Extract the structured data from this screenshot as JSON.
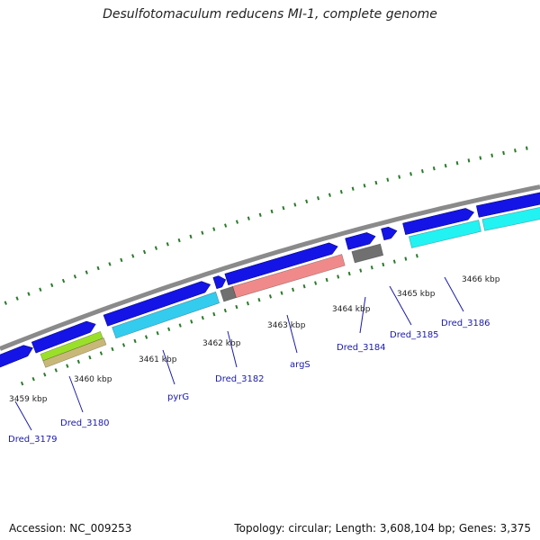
{
  "title": "Desulfotomaculum reducens MI-1, complete genome",
  "footer": {
    "accession": "Accession: NC_009253",
    "topology": "Topology: circular; Length: 3,608,104 bp; Genes: 3,375"
  },
  "colors": {
    "backbone": "#8a8a8a",
    "tick": "#2a7a2a",
    "gene_outer": "#1414e6",
    "cds_cyan_light": "#33ccee",
    "cds_cyan_bright": "#22f2f2",
    "cds_salmon": "#f08a8a",
    "cds_gray": "#707070",
    "cds_green": "#9ae02a",
    "cds_khaki": "#c8b878",
    "label": "#1a1aaa",
    "kbp_label": "#222222"
  },
  "ruler": {
    "kbp_labels": [
      "3459 kbp",
      "3460 kbp",
      "3461 kbp",
      "3462 kbp",
      "3463 kbp",
      "3464 kbp",
      "3465 kbp",
      "3466 kbp"
    ]
  },
  "gene_labels": [
    "Dred_3179",
    "Dred_3180",
    "pyrG",
    "Dred_3182",
    "argS",
    "Dred_3184",
    "Dred_3185",
    "Dred_3186"
  ]
}
